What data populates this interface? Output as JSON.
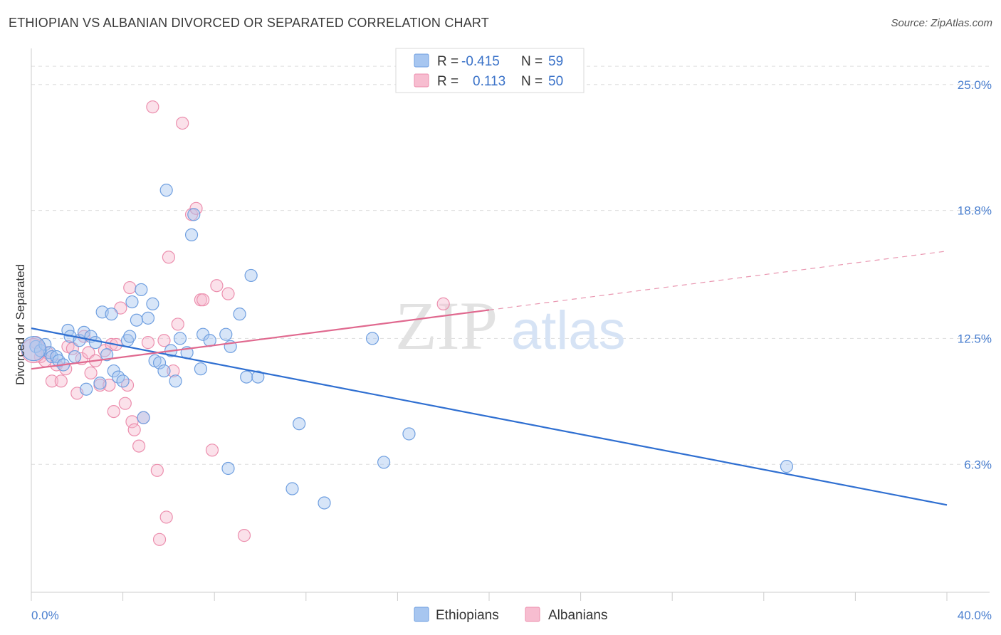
{
  "header": {
    "title": "ETHIOPIAN VS ALBANIAN DIVORCED OR SEPARATED CORRELATION CHART",
    "source": "Source: ZipAtlas.com"
  },
  "watermark": {
    "zip": "ZIP",
    "atlas": "atlas"
  },
  "legend": {
    "rows": [
      {
        "r_label": "R =",
        "r_value": "-0.415",
        "n_label": "N =",
        "n_value": "59",
        "color": "#a7c6f0",
        "stroke": "#6f9fe0"
      },
      {
        "r_label": "R =",
        "r_value": "0.113",
        "n_label": "N =",
        "n_value": "50",
        "color": "#f7bdd0",
        "stroke": "#ec8fae"
      }
    ]
  },
  "colors": {
    "ethiopians_fill": "#a7c6f0",
    "ethiopians_stroke": "#6f9fe0",
    "ethiopians_line": "#2f6fd1",
    "albanians_fill": "#f7bdd0",
    "albanians_stroke": "#ec8fae",
    "albanians_line": "#e0698f",
    "grid": "#dddddd",
    "axis_text": "#4a7fcf"
  },
  "chart_data": {
    "type": "scatter",
    "title": "ETHIOPIAN VS ALBANIAN DIVORCED OR SEPARATED CORRELATION CHART",
    "xlabel": "",
    "ylabel": "Divorced or Separated",
    "xlim": [
      0,
      40
    ],
    "ylim": [
      0,
      26.5
    ],
    "x_tick_labels": [
      "0.0%",
      "40.0%"
    ],
    "y_ticks": [
      6.3,
      12.5,
      18.8,
      25.0
    ],
    "y_tick_labels": [
      "6.3%",
      "12.5%",
      "18.8%",
      "25.0%"
    ],
    "grid": true,
    "legend_position": "top-center",
    "series": [
      {
        "name": "Ethiopians",
        "trend": {
          "x": [
            0,
            40
          ],
          "y": [
            13.0,
            4.3
          ],
          "dashed_from": null
        },
        "points": [
          [
            0.2,
            12.1
          ],
          [
            0.4,
            11.9
          ],
          [
            0.6,
            12.2
          ],
          [
            0.8,
            11.8
          ],
          [
            0.9,
            11.6
          ],
          [
            1.1,
            11.6
          ],
          [
            1.2,
            11.4
          ],
          [
            1.4,
            11.2
          ],
          [
            1.6,
            12.9
          ],
          [
            1.7,
            12.6
          ],
          [
            1.9,
            11.6
          ],
          [
            2.1,
            12.4
          ],
          [
            2.3,
            12.8
          ],
          [
            2.4,
            10.0
          ],
          [
            2.6,
            12.6
          ],
          [
            2.8,
            12.3
          ],
          [
            3.0,
            10.3
          ],
          [
            3.1,
            13.8
          ],
          [
            3.3,
            11.7
          ],
          [
            3.5,
            13.7
          ],
          [
            3.6,
            10.9
          ],
          [
            3.8,
            10.6
          ],
          [
            4.0,
            10.4
          ],
          [
            4.2,
            12.4
          ],
          [
            4.3,
            12.6
          ],
          [
            4.4,
            14.3
          ],
          [
            4.6,
            13.4
          ],
          [
            4.8,
            14.9
          ],
          [
            4.9,
            8.6
          ],
          [
            5.1,
            13.5
          ],
          [
            5.3,
            14.2
          ],
          [
            5.4,
            11.4
          ],
          [
            5.6,
            11.3
          ],
          [
            5.8,
            10.9
          ],
          [
            5.9,
            19.8
          ],
          [
            6.1,
            11.9
          ],
          [
            6.3,
            10.4
          ],
          [
            6.5,
            12.5
          ],
          [
            6.8,
            11.8
          ],
          [
            7.0,
            17.6
          ],
          [
            7.1,
            18.6
          ],
          [
            7.4,
            11.0
          ],
          [
            7.5,
            12.7
          ],
          [
            7.8,
            12.4
          ],
          [
            8.5,
            12.7
          ],
          [
            8.6,
            6.1
          ],
          [
            8.7,
            12.1
          ],
          [
            9.1,
            13.7
          ],
          [
            9.4,
            10.6
          ],
          [
            9.6,
            15.6
          ],
          [
            9.9,
            10.6
          ],
          [
            11.7,
            8.3
          ],
          [
            11.4,
            5.1
          ],
          [
            12.8,
            4.4
          ],
          [
            14.9,
            12.5
          ],
          [
            15.4,
            6.4
          ],
          [
            16.5,
            7.8
          ],
          [
            33.0,
            6.2
          ],
          [
            0.1,
            12.0
          ]
        ]
      },
      {
        "name": "Albanians",
        "trend": {
          "x": [
            0,
            40
          ],
          "y": [
            11.0,
            16.8
          ],
          "dashed_from": 20
        },
        "points": [
          [
            0.2,
            12.3
          ],
          [
            0.4,
            11.6
          ],
          [
            0.6,
            11.4
          ],
          [
            0.7,
            11.8
          ],
          [
            0.9,
            10.4
          ],
          [
            1.1,
            11.2
          ],
          [
            1.3,
            10.4
          ],
          [
            1.5,
            11.0
          ],
          [
            1.6,
            12.1
          ],
          [
            1.8,
            12.0
          ],
          [
            2.0,
            9.8
          ],
          [
            2.2,
            11.5
          ],
          [
            2.3,
            12.6
          ],
          [
            2.5,
            11.8
          ],
          [
            2.6,
            10.8
          ],
          [
            2.8,
            11.4
          ],
          [
            3.0,
            10.2
          ],
          [
            3.2,
            11.9
          ],
          [
            3.4,
            10.2
          ],
          [
            3.5,
            12.2
          ],
          [
            3.6,
            8.9
          ],
          [
            3.7,
            12.2
          ],
          [
            3.9,
            14.0
          ],
          [
            4.1,
            9.3
          ],
          [
            4.2,
            10.2
          ],
          [
            4.3,
            15.0
          ],
          [
            4.4,
            8.4
          ],
          [
            4.5,
            8.0
          ],
          [
            4.7,
            7.2
          ],
          [
            4.9,
            8.6
          ],
          [
            5.1,
            12.3
          ],
          [
            5.3,
            23.9
          ],
          [
            5.5,
            6.0
          ],
          [
            5.6,
            2.6
          ],
          [
            5.8,
            12.4
          ],
          [
            5.9,
            3.7
          ],
          [
            6.0,
            16.5
          ],
          [
            6.2,
            10.9
          ],
          [
            6.4,
            13.2
          ],
          [
            6.6,
            23.1
          ],
          [
            7.0,
            18.6
          ],
          [
            7.2,
            18.9
          ],
          [
            7.4,
            14.4
          ],
          [
            7.5,
            14.4
          ],
          [
            7.9,
            7.0
          ],
          [
            8.1,
            15.1
          ],
          [
            8.6,
            14.7
          ],
          [
            9.3,
            2.8
          ],
          [
            18.0,
            14.2
          ],
          [
            0.1,
            11.9
          ]
        ]
      }
    ]
  },
  "bottom_legend": [
    {
      "label": "Ethiopians"
    },
    {
      "label": "Albanians"
    }
  ]
}
